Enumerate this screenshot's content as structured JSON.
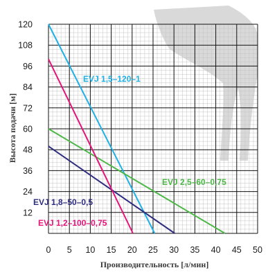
{
  "chart_data": {
    "type": "line",
    "xlabel": "Производительность [л/мин]",
    "ylabel": "Высота подачи [м]",
    "xlim": [
      0,
      50
    ],
    "ylim": [
      0,
      120
    ],
    "x_ticks": [
      0,
      5,
      10,
      15,
      20,
      25,
      30,
      35,
      40,
      45,
      50
    ],
    "y_ticks": [
      12,
      24,
      36,
      48,
      60,
      72,
      84,
      96,
      108,
      120
    ],
    "grid": true,
    "legend": "none",
    "series": [
      {
        "name": "EVJ 1,5–120–1",
        "color": "#1fb0e6",
        "x": [
          0,
          25.4
        ],
        "y": [
          120,
          0
        ]
      },
      {
        "name": "EVJ 2,5–60–0,75",
        "color": "#4db848",
        "x": [
          0,
          42.2
        ],
        "y": [
          60,
          0
        ]
      },
      {
        "name": "EVJ 1,8–50–0,5",
        "color": "#2e2d7f",
        "x": [
          0,
          30.2
        ],
        "y": [
          50,
          0
        ]
      },
      {
        "name": "EVJ 1,2–100–0,75",
        "color": "#e4147c",
        "x": [
          0,
          20.2
        ],
        "y": [
          100,
          0
        ]
      }
    ]
  }
}
